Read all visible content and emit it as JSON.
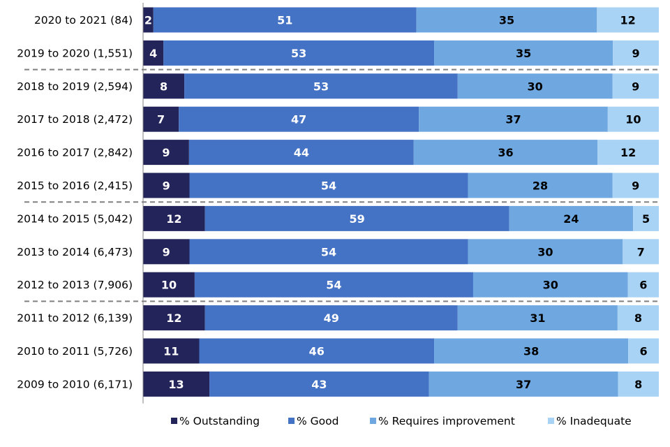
{
  "chart_data": {
    "type": "bar",
    "orientation": "horizontal",
    "stacked": true,
    "title": "",
    "xlabel": "",
    "ylabel": "",
    "xlim": [
      0,
      100
    ],
    "grid": false,
    "legend_position": "bottom",
    "categories": [
      "2020 to 2021 (84)",
      "2019 to 2020 (1,551)",
      "2018 to 2019 (2,594)",
      "2017 to 2018 (2,472)",
      "2016 to 2017 (2,842)",
      "2015 to 2016 (2,415)",
      "2014 to 2015 (5,042)",
      "2013 to 2014 (6,473)",
      "2012 to 2013 (7,906)",
      "2011 to 2012 (6,139)",
      "2010 to 2011 (5,726)",
      "2009 to 2010 (6,171)"
    ],
    "series": [
      {
        "name": "% Outstanding",
        "color": "#23245a",
        "label_color": "#ffffff",
        "values": [
          2,
          4,
          8,
          7,
          9,
          9,
          12,
          9,
          10,
          12,
          11,
          13
        ]
      },
      {
        "name": "% Good",
        "color": "#4472c4",
        "label_color": "#ffffff",
        "values": [
          51,
          53,
          53,
          47,
          44,
          54,
          59,
          54,
          54,
          49,
          46,
          43
        ]
      },
      {
        "name": "% Requires improvement",
        "color": "#6fa8e0",
        "label_color": "#000000",
        "values": [
          35,
          35,
          30,
          37,
          36,
          28,
          24,
          30,
          30,
          31,
          38,
          37
        ]
      },
      {
        "name": "% Inadequate",
        "color": "#a9d3f5",
        "label_color": "#000000",
        "values": [
          12,
          9,
          9,
          10,
          12,
          9,
          5,
          7,
          6,
          8,
          6,
          8
        ]
      }
    ],
    "group_separators_after": [
      1,
      5,
      8
    ],
    "separator_color": "#808080",
    "axis_color": "#808080"
  }
}
